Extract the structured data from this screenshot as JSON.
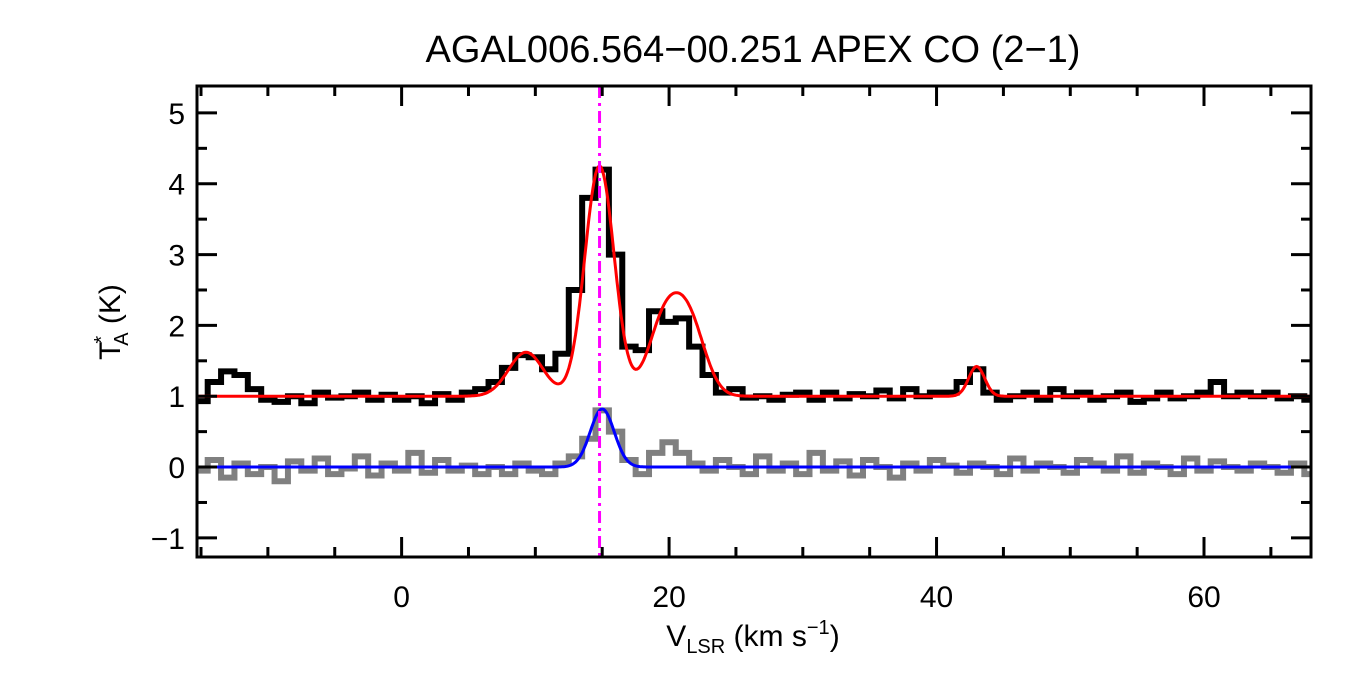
{
  "chart_data": {
    "type": "line",
    "title": "AGAL006.564−00.251  APEX CO (2−1)",
    "xlabel": {
      "main": "V",
      "sub": "LSR",
      "rest": " (km s",
      "sup": "−1",
      "end": ")"
    },
    "ylabel": {
      "main": "T",
      "sup": "*",
      "sub": "A",
      "rest": " (K)"
    },
    "xlim": [
      -15.3,
      68
    ],
    "ylim": [
      -1.27,
      5.38
    ],
    "xticks": [
      0,
      20,
      40,
      60
    ],
    "xtick_labels": [
      "0",
      "20",
      "40",
      "60"
    ],
    "yticks": [
      -1,
      0,
      1,
      2,
      3,
      4,
      5
    ],
    "ytick_labels": [
      "−1",
      "0",
      "1",
      "2",
      "3",
      "4",
      "5"
    ],
    "x_minor_step": 5,
    "y_minor_step": 0.5,
    "grid": false,
    "vline": {
      "x": 14.8,
      "color": "#ff00ff",
      "style": "dash-dot"
    },
    "x": [
      -15,
      -14,
      -13,
      -12,
      -11,
      -10,
      -9,
      -8,
      -7,
      -6,
      -5,
      -4,
      -3,
      -2,
      -1,
      0,
      1,
      2,
      3,
      4,
      5,
      6,
      7,
      8,
      9,
      10,
      11,
      12,
      13,
      14,
      15,
      16,
      17,
      18,
      19,
      20,
      21,
      22,
      23,
      24,
      25,
      26,
      27,
      28,
      29,
      30,
      31,
      32,
      33,
      34,
      35,
      36,
      37,
      38,
      39,
      40,
      41,
      42,
      43,
      44,
      45,
      46,
      47,
      48,
      49,
      50,
      51,
      52,
      53,
      54,
      55,
      56,
      57,
      58,
      59,
      60,
      61,
      62,
      63,
      64,
      65,
      66,
      67,
      68
    ],
    "series": [
      {
        "role": "spectrum",
        "color": "#000000",
        "style": "histogram",
        "values": [
          0.93,
          1.2,
          1.35,
          1.3,
          1.1,
          0.95,
          0.92,
          1.0,
          0.9,
          1.05,
          0.98,
          1.0,
          1.05,
          0.95,
          1.02,
          0.95,
          1.0,
          0.9,
          1.03,
          0.95,
          1.05,
          1.1,
          1.2,
          1.4,
          1.58,
          1.55,
          1.38,
          1.6,
          2.5,
          3.8,
          4.2,
          3.0,
          1.7,
          1.65,
          2.2,
          2.05,
          2.1,
          1.7,
          1.3,
          1.05,
          1.1,
          0.98,
          1.0,
          0.95,
          1.02,
          1.05,
          0.95,
          1.05,
          0.97,
          1.03,
          1.0,
          1.08,
          0.97,
          1.1,
          1.0,
          1.05,
          1.05,
          1.2,
          1.38,
          1.05,
          0.95,
          1.0,
          1.05,
          0.95,
          1.1,
          1.0,
          1.05,
          0.95,
          1.0,
          1.05,
          0.92,
          0.97,
          1.05,
          0.97,
          1.0,
          1.05,
          1.2,
          1.0,
          1.05,
          1.0,
          1.05,
          0.97,
          1.0,
          0.95
        ]
      },
      {
        "role": "spectrum",
        "color": "#808080",
        "style": "histogram",
        "values": [
          -0.05,
          0.1,
          -0.15,
          0.05,
          -0.1,
          0.0,
          -0.2,
          0.08,
          -0.05,
          0.12,
          -0.1,
          -0.02,
          0.15,
          -0.12,
          0.05,
          -0.05,
          0.2,
          -0.08,
          0.1,
          -0.05,
          0.02,
          -0.1,
          0.0,
          -0.1,
          0.05,
          -0.05,
          -0.1,
          0.05,
          0.15,
          0.4,
          0.8,
          0.5,
          0.1,
          -0.1,
          0.2,
          0.35,
          0.2,
          0.05,
          -0.05,
          0.1,
          0.0,
          -0.1,
          0.15,
          -0.05,
          0.05,
          -0.1,
          0.2,
          -0.05,
          0.08,
          -0.12,
          0.1,
          0.0,
          -0.15,
          0.05,
          -0.05,
          0.1,
          0.02,
          -0.08,
          0.05,
          0.0,
          -0.1,
          0.12,
          -0.05,
          0.05,
          0.0,
          -0.08,
          0.1,
          0.05,
          -0.05,
          0.15,
          -0.08,
          0.05,
          0.0,
          -0.1,
          0.12,
          -0.05,
          0.08,
          0.0,
          -0.05,
          0.05,
          0.0,
          -0.08,
          0.05,
          -0.1
        ]
      },
      {
        "role": "fit",
        "color": "#ff0000",
        "baseline": 1.0,
        "gaussians": [
          {
            "center": 9.3,
            "amplitude": 0.62,
            "sigma": 1.3
          },
          {
            "center": 14.8,
            "amplitude": 3.25,
            "sigma": 1.1
          },
          {
            "center": 19.6,
            "amplitude": 1.0,
            "sigma": 1.2
          },
          {
            "center": 21.5,
            "amplitude": 1.0,
            "sigma": 1.2
          },
          {
            "center": 43.0,
            "amplitude": 0.42,
            "sigma": 0.6
          }
        ]
      },
      {
        "role": "fit",
        "color": "#0000ff",
        "baseline": 0.0,
        "gaussians": [
          {
            "center": 15.0,
            "amplitude": 0.82,
            "sigma": 0.9
          }
        ]
      }
    ]
  }
}
